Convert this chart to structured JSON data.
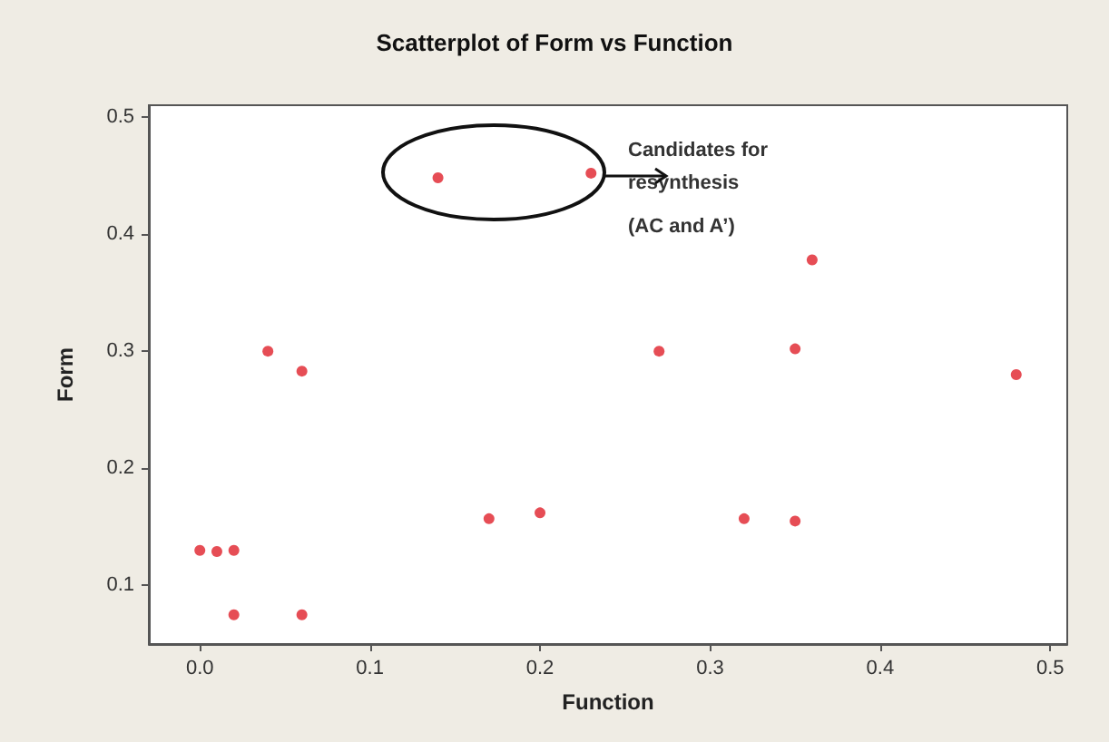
{
  "chart_data": {
    "type": "scatter",
    "title": "Scatterplot of Form vs Function",
    "xlabel": "Function",
    "ylabel": "Form",
    "x": [
      0,
      0.01,
      0.02,
      0.02,
      0.06,
      0.04,
      0.06,
      0.14,
      0.17,
      0.2,
      0.23,
      0.27,
      0.35,
      0.36,
      0.32,
      0.35,
      0.48
    ],
    "series": [
      {
        "color": "#e0202a",
        "values": [
          0.13,
          0.129,
          0.13,
          0.075,
          0.075,
          0.3,
          0.283,
          0.448,
          0.157,
          0.162,
          0.452,
          0.3,
          0.302,
          0.378,
          0.157,
          0.155,
          0.28
        ]
      }
    ],
    "xlim": [
      -0.03,
      0.51
    ],
    "ylim": [
      0.05,
      0.51
    ],
    "xticks": [
      {
        "value": 0,
        "label": "0.0"
      },
      0.1,
      0.2,
      0.3,
      0.4,
      0.5
    ],
    "yticks": [
      0.1,
      0.2,
      0.3,
      0.4,
      0.5
    ],
    "annotations": [
      "Candidates for resynthesis",
      "(AC and A’)"
    ],
    "marker": "circle",
    "grid": false
  }
}
